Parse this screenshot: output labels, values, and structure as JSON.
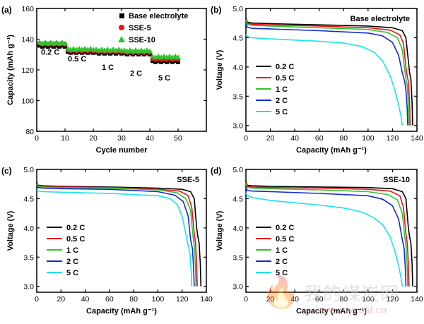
{
  "watermark": {
    "text": "我的煤炭网",
    "url": "www.mycoal.cn"
  },
  "colors": {
    "black": "#000000",
    "red": "#e8141b",
    "green": "#2ec52e",
    "blue": "#1628d0",
    "cyan": "#1ee1ee"
  },
  "chart_data": [
    {
      "panel": "(a)",
      "type": "scatter",
      "title": "",
      "xlabel": "Cycle number",
      "ylabel": "Capacity (mAh g⁻¹)",
      "xlim": [
        0,
        60
      ],
      "ylim": [
        80,
        160
      ],
      "xticks": [
        0,
        10,
        20,
        30,
        40,
        50
      ],
      "yticks": [
        80,
        100,
        120,
        140,
        160
      ],
      "legend_position": "top-right",
      "rate_labels": [
        "0.2 C",
        "0.5 C",
        "1 C",
        "2 C",
        "5 C"
      ],
      "series": [
        {
          "name": "Base electrolyte",
          "marker": "square",
          "color": "#000000",
          "segments": [
            {
              "x0": 1,
              "x1": 10,
              "y": 135.5
            },
            {
              "x0": 11,
              "x1": 20,
              "y": 131.5
            },
            {
              "x0": 21,
              "x1": 30,
              "y": 131
            },
            {
              "x0": 31,
              "x1": 40,
              "y": 130.5
            },
            {
              "x0": 41,
              "x1": 50,
              "y": 125.5
            }
          ]
        },
        {
          "name": "SSE-5",
          "marker": "circle",
          "color": "#e8141b",
          "segments": [
            {
              "x0": 1,
              "x1": 10,
              "y": 137
            },
            {
              "x0": 11,
              "x1": 20,
              "y": 132.5
            },
            {
              "x0": 21,
              "x1": 30,
              "y": 132
            },
            {
              "x0": 31,
              "x1": 40,
              "y": 131.5
            },
            {
              "x0": 41,
              "x1": 50,
              "y": 127
            }
          ]
        },
        {
          "name": "SSE-10",
          "marker": "triangle",
          "color": "#2ec52e",
          "segments": [
            {
              "x0": 1,
              "x1": 10,
              "y": 137.5
            },
            {
              "x0": 11,
              "x1": 20,
              "y": 133.5
            },
            {
              "x0": 21,
              "x1": 30,
              "y": 133
            },
            {
              "x0": 31,
              "x1": 40,
              "y": 132.5
            },
            {
              "x0": 41,
              "x1": 50,
              "y": 128.5
            }
          ]
        }
      ]
    },
    {
      "panel": "(b)",
      "type": "line",
      "title": "Base electrolyte",
      "xlabel": "Capacity (mAh g⁻¹)",
      "ylabel": "Voltage (V)",
      "xlim": [
        0,
        140
      ],
      "ylim": [
        2.9,
        5.0
      ],
      "xticks": [
        0,
        20,
        40,
        60,
        80,
        100,
        120,
        140
      ],
      "yticks": [
        3.0,
        3.5,
        4.0,
        4.5,
        5.0
      ],
      "legend_position": "lower-left",
      "series": [
        {
          "name": "0.2 C",
          "color": "#000000",
          "x": [
            0,
            1,
            5,
            20,
            60,
            100,
            120,
            128,
            131,
            133,
            134,
            135,
            136,
            136.5
          ],
          "y": [
            4.85,
            4.77,
            4.75,
            4.74,
            4.72,
            4.7,
            4.67,
            4.62,
            4.5,
            4.1,
            3.9,
            3.8,
            3.4,
            3.0
          ]
        },
        {
          "name": "0.5 C",
          "color": "#e8141b",
          "x": [
            0,
            1,
            5,
            20,
            60,
            100,
            118,
            126,
            129,
            131,
            132,
            133,
            134,
            134.5
          ],
          "y": [
            4.82,
            4.75,
            4.73,
            4.72,
            4.7,
            4.67,
            4.63,
            4.55,
            4.4,
            4.0,
            3.85,
            3.75,
            3.4,
            3.0
          ]
        },
        {
          "name": "1 C",
          "color": "#2ec52e",
          "x": [
            0,
            1,
            5,
            20,
            60,
            100,
            116,
            124,
            128,
            130,
            131,
            132,
            133,
            133.5
          ],
          "y": [
            4.8,
            4.73,
            4.71,
            4.7,
            4.67,
            4.64,
            4.59,
            4.5,
            4.3,
            3.95,
            3.8,
            3.7,
            3.35,
            3.0
          ]
        },
        {
          "name": "2 C",
          "color": "#1628d0",
          "x": [
            0,
            1,
            5,
            20,
            60,
            100,
            112,
            120,
            125,
            128,
            130,
            131,
            132,
            132.5
          ],
          "y": [
            4.75,
            4.68,
            4.66,
            4.65,
            4.62,
            4.58,
            4.53,
            4.42,
            4.2,
            3.9,
            3.75,
            3.6,
            3.3,
            3.0
          ]
        },
        {
          "name": "5 C",
          "color": "#1ee1ee",
          "x": [
            0,
            1,
            5,
            20,
            60,
            80,
            95,
            105,
            112,
            118,
            122,
            125,
            127,
            128
          ],
          "y": [
            4.55,
            4.52,
            4.5,
            4.48,
            4.44,
            4.41,
            4.35,
            4.25,
            4.1,
            3.85,
            3.6,
            3.35,
            3.15,
            3.0
          ]
        }
      ]
    },
    {
      "panel": "(c)",
      "type": "line",
      "title": "SSE-5",
      "xlabel": "Capacity (mAh g⁻¹)",
      "ylabel": "Voltage (V)",
      "xlim": [
        0,
        140
      ],
      "ylim": [
        2.9,
        5.0
      ],
      "xticks": [
        0,
        20,
        40,
        60,
        80,
        100,
        120,
        140
      ],
      "yticks": [
        3.0,
        3.5,
        4.0,
        4.5,
        5.0
      ],
      "legend_position": "lower-left",
      "series": [
        {
          "name": "0.2 C",
          "color": "#000000",
          "x": [
            0,
            1,
            5,
            20,
            60,
            100,
            120,
            127,
            130,
            132,
            133,
            134,
            135,
            135.5
          ],
          "y": [
            4.78,
            4.73,
            4.72,
            4.71,
            4.7,
            4.68,
            4.66,
            4.62,
            4.5,
            4.0,
            3.85,
            3.75,
            3.4,
            3.0
          ]
        },
        {
          "name": "0.5 C",
          "color": "#e8141b",
          "x": [
            0,
            1,
            5,
            20,
            60,
            100,
            118,
            125,
            128,
            130,
            131,
            132,
            132.5
          ],
          "y": [
            4.76,
            4.72,
            4.71,
            4.7,
            4.69,
            4.66,
            4.63,
            4.55,
            4.35,
            3.9,
            3.75,
            3.4,
            3.0
          ]
        },
        {
          "name": "1 C",
          "color": "#2ec52e",
          "x": [
            0,
            1,
            5,
            20,
            60,
            100,
            116,
            123,
            127,
            129,
            130,
            131,
            131.5
          ],
          "y": [
            4.75,
            4.71,
            4.7,
            4.69,
            4.68,
            4.65,
            4.6,
            4.5,
            4.3,
            3.85,
            3.7,
            3.35,
            3.0
          ]
        },
        {
          "name": "2 C",
          "color": "#1628d0",
          "x": [
            0,
            1,
            5,
            20,
            60,
            100,
            114,
            121,
            125,
            127,
            128.5,
            129.5,
            130
          ],
          "y": [
            4.72,
            4.69,
            4.68,
            4.67,
            4.66,
            4.62,
            4.56,
            4.45,
            4.2,
            3.8,
            3.65,
            3.3,
            3.0
          ]
        },
        {
          "name": "5 C",
          "color": "#1ee1ee",
          "x": [
            0,
            1,
            5,
            20,
            60,
            100,
            110,
            116,
            120,
            123,
            125,
            126.5,
            127.5,
            128
          ],
          "y": [
            4.65,
            4.63,
            4.62,
            4.61,
            4.59,
            4.55,
            4.5,
            4.4,
            4.2,
            3.9,
            3.7,
            3.55,
            3.25,
            3.0
          ]
        }
      ]
    },
    {
      "panel": "(d)",
      "type": "line",
      "title": "SSE-10",
      "xlabel": "Capacity (mAh g⁻¹)",
      "ylabel": "Voltage (V)",
      "xlim": [
        0,
        140
      ],
      "ylim": [
        2.9,
        5.0
      ],
      "xticks": [
        0,
        20,
        40,
        60,
        80,
        100,
        120,
        140
      ],
      "yticks": [
        3.0,
        3.5,
        4.0,
        4.5,
        5.0
      ],
      "legend_position": "lower-left",
      "series": [
        {
          "name": "0.2 C",
          "color": "#000000",
          "x": [
            0,
            1,
            5,
            20,
            60,
            100,
            120,
            128,
            131,
            133,
            134,
            135,
            136,
            136.5
          ],
          "y": [
            4.8,
            4.73,
            4.72,
            4.71,
            4.7,
            4.69,
            4.67,
            4.62,
            4.5,
            4.0,
            3.85,
            3.75,
            3.4,
            3.0
          ]
        },
        {
          "name": "0.5 C",
          "color": "#e8141b",
          "x": [
            0,
            1,
            5,
            20,
            60,
            100,
            118,
            126,
            129,
            131,
            132,
            133,
            133.5
          ],
          "y": [
            4.78,
            4.71,
            4.7,
            4.69,
            4.68,
            4.66,
            4.63,
            4.55,
            4.35,
            3.9,
            3.75,
            3.4,
            3.0
          ]
        },
        {
          "name": "1 C",
          "color": "#2ec52e",
          "x": [
            0,
            1,
            5,
            20,
            60,
            100,
            116,
            124,
            128,
            130,
            131,
            132,
            132.5
          ],
          "y": [
            4.76,
            4.69,
            4.68,
            4.67,
            4.65,
            4.62,
            4.57,
            4.48,
            4.25,
            3.85,
            3.7,
            3.35,
            3.0
          ]
        },
        {
          "name": "2 C",
          "color": "#1628d0",
          "x": [
            0,
            1,
            5,
            20,
            60,
            100,
            112,
            120,
            125,
            128,
            129.5,
            130.5,
            131
          ],
          "y": [
            4.7,
            4.64,
            4.63,
            4.62,
            4.59,
            4.55,
            4.49,
            4.38,
            4.15,
            3.8,
            3.65,
            3.3,
            3.0
          ]
        },
        {
          "name": "5 C",
          "color": "#1ee1ee",
          "x": [
            0,
            1,
            5,
            20,
            40,
            60,
            80,
            95,
            105,
            112,
            118,
            122,
            125,
            127,
            128
          ],
          "y": [
            4.6,
            4.55,
            4.52,
            4.47,
            4.43,
            4.39,
            4.34,
            4.27,
            4.17,
            4.05,
            3.85,
            3.6,
            3.35,
            3.15,
            3.0
          ]
        }
      ]
    }
  ]
}
